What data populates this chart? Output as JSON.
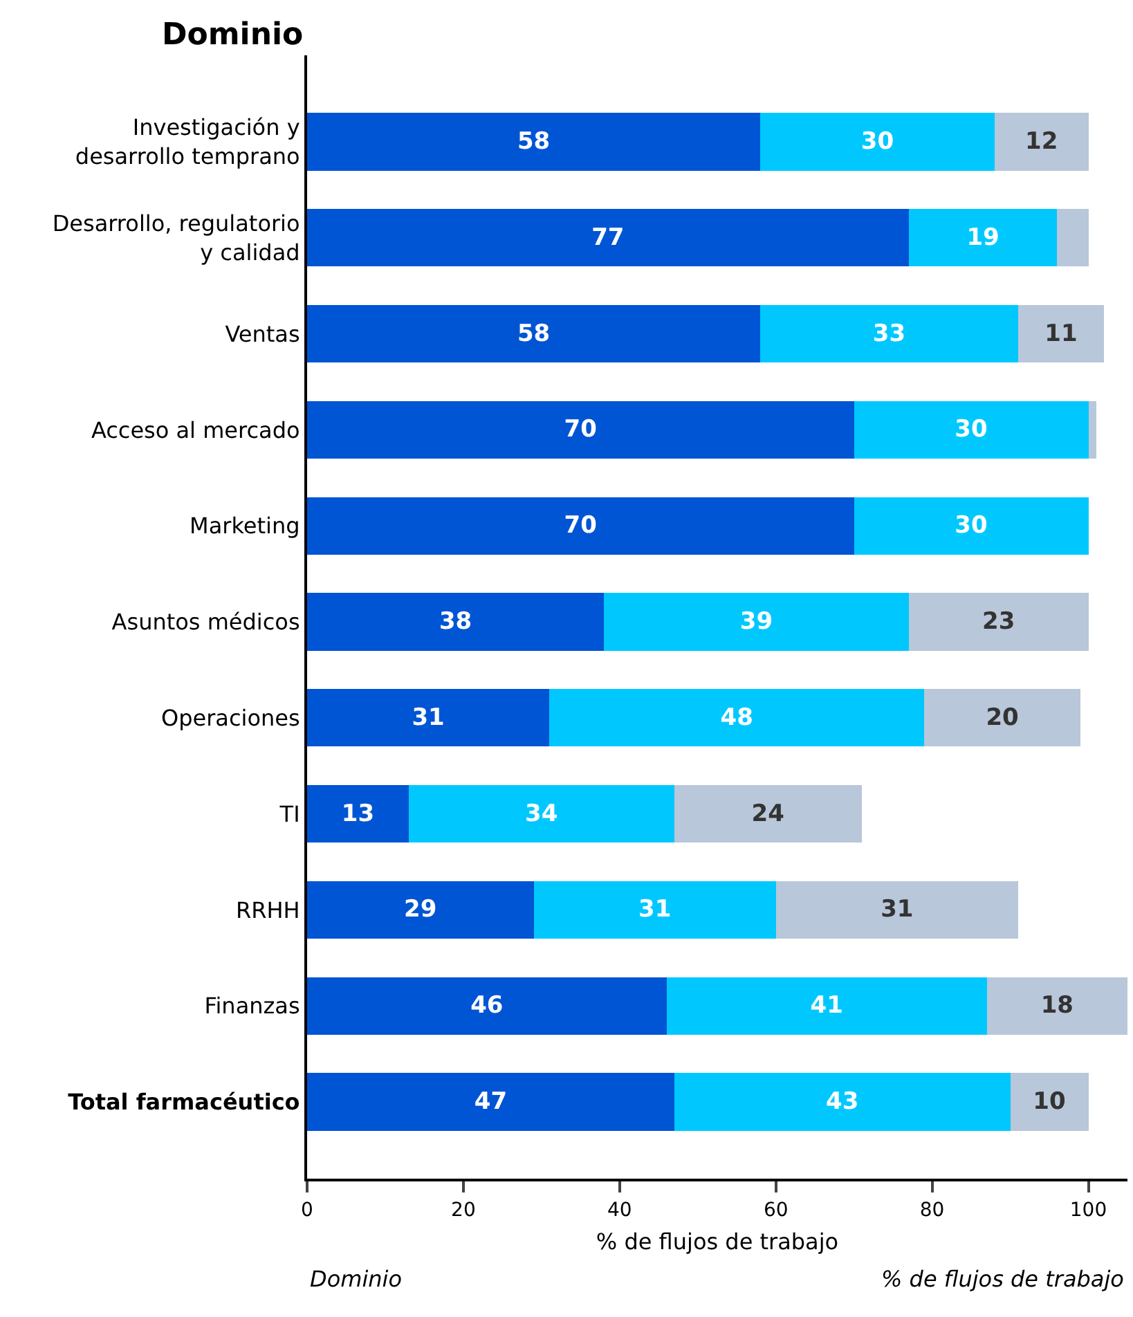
{
  "chart_data": {
    "type": "bar",
    "orientation": "horizontal",
    "stacked": true,
    "title": "Dominio",
    "xlabel": "% de flujos de trabajo",
    "categories": [
      "Investigación y desarrollo temprano",
      "Desarrollo, regulatorio y calidad",
      "Ventas",
      "Acceso al mercado",
      "Marketing",
      "Asuntos médicos",
      "Operaciones",
      "TI",
      "RRHH",
      "Finanzas",
      "Total farmacéutico"
    ],
    "series": [
      {
        "color": "#0055d4",
        "values": [
          58,
          77,
          58,
          70,
          70,
          38,
          31,
          13,
          29,
          46,
          47
        ],
        "value_labels": [
          "58",
          "77",
          "58",
          "70",
          "70",
          "38",
          "31",
          "13",
          "29",
          "46",
          "47"
        ]
      },
      {
        "color": "#00c8ff",
        "values": [
          30,
          19,
          33,
          30,
          30,
          39,
          48,
          34,
          31,
          41,
          43
        ],
        "value_labels": [
          "30",
          "19",
          "33",
          "30",
          "30",
          "39",
          "48",
          "34",
          "31",
          "41",
          "43"
        ]
      },
      {
        "color": "#b8c7d9",
        "values": [
          12,
          4,
          11,
          1,
          0,
          23,
          20,
          24,
          31,
          18,
          10
        ],
        "value_labels": [
          "12",
          null,
          "11",
          null,
          null,
          "23",
          "20",
          "24",
          "31",
          "18",
          "10"
        ]
      }
    ],
    "xlim": [
      0,
      105
    ],
    "xticks": [
      0,
      20,
      40,
      60,
      80,
      100
    ],
    "annotations": [
      "Dominio",
      "% de flujos de trabajo"
    ]
  }
}
